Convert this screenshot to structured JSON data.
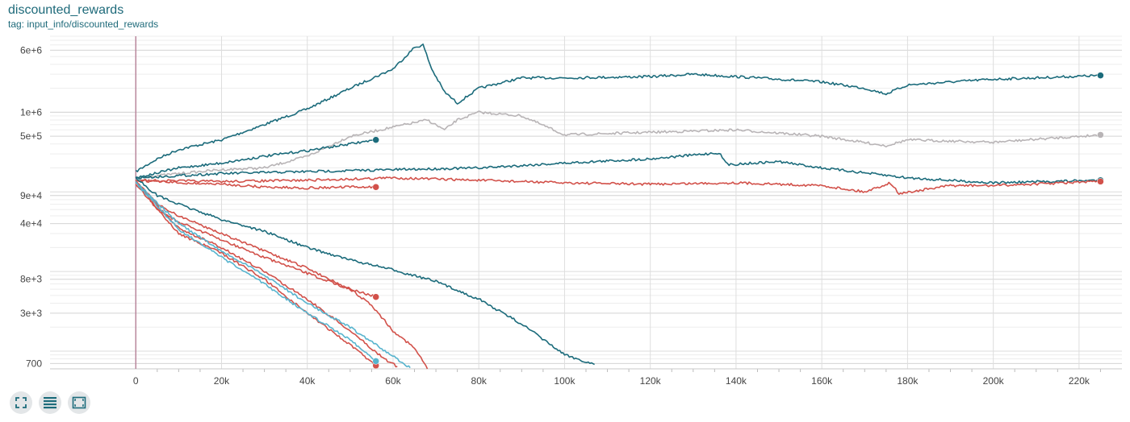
{
  "card": {
    "title": "discounted_rewards",
    "tag": "tag: input_info/discounted_rewards"
  },
  "toolbar": {
    "icons": [
      "fit-domain-icon",
      "toggle-log-scale-icon",
      "expand-chart-icon"
    ]
  },
  "colors": {
    "teal": "#1b6b7b",
    "red": "#d2514a",
    "grey": "#b8b4b6",
    "light_blue": "#57b4ce",
    "zero_line": "#b68097"
  },
  "chart_data": {
    "type": "line",
    "xlabel": "",
    "ylabel": "",
    "yscale": "log",
    "xlim": [
      -20000,
      230000
    ],
    "ylim": [
      600,
      9000000
    ],
    "x_ticks": [
      0,
      20000,
      40000,
      60000,
      80000,
      100000,
      120000,
      140000,
      160000,
      180000,
      200000,
      220000
    ],
    "x_tick_labels": [
      "0",
      "20k",
      "40k",
      "60k",
      "80k",
      "100k",
      "120k",
      "140k",
      "160k",
      "180k",
      "200k",
      "220k"
    ],
    "y_ticks": [
      700,
      3000,
      8000,
      40000,
      90000,
      500000,
      1000000,
      6000000
    ],
    "y_tick_labels": [
      "700",
      "3e+3",
      "8e+3",
      "4e+4",
      "9e+4",
      "5e+5",
      "1e+6",
      "6e+6"
    ],
    "grid": true,
    "series": [
      {
        "color": "#1b6b7b",
        "end_marker": true,
        "points": [
          [
            0,
            180000
          ],
          [
            5000,
            260000
          ],
          [
            10000,
            340000
          ],
          [
            20000,
            450000
          ],
          [
            30000,
            700000
          ],
          [
            40000,
            1100000
          ],
          [
            50000,
            2000000
          ],
          [
            60000,
            3500000
          ],
          [
            65000,
            6500000
          ],
          [
            67000,
            7000000
          ],
          [
            69000,
            3500000
          ],
          [
            72000,
            1800000
          ],
          [
            75000,
            1300000
          ],
          [
            80000,
            2000000
          ],
          [
            90000,
            2700000
          ],
          [
            100000,
            2700000
          ],
          [
            120000,
            2800000
          ],
          [
            130000,
            3000000
          ],
          [
            140000,
            2800000
          ],
          [
            150000,
            2600000
          ],
          [
            160000,
            2400000
          ],
          [
            170000,
            2000000
          ],
          [
            175000,
            1700000
          ],
          [
            180000,
            2200000
          ],
          [
            190000,
            2400000
          ],
          [
            200000,
            2600000
          ],
          [
            210000,
            2700000
          ],
          [
            225000,
            2900000
          ]
        ]
      },
      {
        "color": "#b8b4b6",
        "end_marker": true,
        "points": [
          [
            0,
            150000
          ],
          [
            10000,
            170000
          ],
          [
            20000,
            190000
          ],
          [
            30000,
            200000
          ],
          [
            40000,
            280000
          ],
          [
            50000,
            500000
          ],
          [
            60000,
            650000
          ],
          [
            68000,
            800000
          ],
          [
            72000,
            600000
          ],
          [
            75000,
            800000
          ],
          [
            80000,
            1000000
          ],
          [
            90000,
            900000
          ],
          [
            100000,
            520000
          ],
          [
            120000,
            560000
          ],
          [
            140000,
            600000
          ],
          [
            160000,
            500000
          ],
          [
            175000,
            380000
          ],
          [
            180000,
            450000
          ],
          [
            200000,
            420000
          ],
          [
            225000,
            520000
          ]
        ]
      },
      {
        "color": "#1b6b7b",
        "end_marker": true,
        "points": [
          [
            0,
            150000
          ],
          [
            10000,
            200000
          ],
          [
            20000,
            230000
          ],
          [
            30000,
            280000
          ],
          [
            40000,
            330000
          ],
          [
            50000,
            400000
          ],
          [
            56000,
            450000
          ]
        ]
      },
      {
        "color": "#1b6b7b",
        "end_marker": true,
        "points": [
          [
            0,
            150000
          ],
          [
            20000,
            170000
          ],
          [
            40000,
            180000
          ],
          [
            60000,
            190000
          ],
          [
            80000,
            200000
          ],
          [
            100000,
            230000
          ],
          [
            120000,
            260000
          ],
          [
            136000,
            310000
          ],
          [
            138000,
            220000
          ],
          [
            150000,
            240000
          ],
          [
            160000,
            200000
          ],
          [
            180000,
            150000
          ],
          [
            200000,
            130000
          ],
          [
            225000,
            140000
          ]
        ]
      },
      {
        "color": "#d2514a",
        "end_marker": true,
        "points": [
          [
            0,
            140000
          ],
          [
            20000,
            135000
          ],
          [
            40000,
            140000
          ],
          [
            60000,
            150000
          ],
          [
            80000,
            140000
          ],
          [
            100000,
            130000
          ],
          [
            120000,
            125000
          ],
          [
            140000,
            130000
          ],
          [
            160000,
            120000
          ],
          [
            170000,
            100000
          ],
          [
            176000,
            130000
          ],
          [
            178000,
            95000
          ],
          [
            190000,
            120000
          ],
          [
            200000,
            120000
          ],
          [
            225000,
            135000
          ]
        ]
      },
      {
        "color": "#d2514a",
        "end_marker": true,
        "points": [
          [
            0,
            140000
          ],
          [
            10000,
            130000
          ],
          [
            20000,
            125000
          ],
          [
            30000,
            115000
          ],
          [
            40000,
            112000
          ],
          [
            50000,
            115000
          ],
          [
            56000,
            115000
          ]
        ]
      },
      {
        "color": "#1b6b7b",
        "end_marker": false,
        "points": [
          [
            0,
            150000
          ],
          [
            5000,
            90000
          ],
          [
            10000,
            70000
          ],
          [
            20000,
            45000
          ],
          [
            30000,
            32000
          ],
          [
            40000,
            20000
          ],
          [
            50000,
            14000
          ],
          [
            60000,
            10500
          ],
          [
            70000,
            7500
          ],
          [
            80000,
            4500
          ],
          [
            90000,
            2200
          ],
          [
            100000,
            900
          ],
          [
            107000,
            680
          ]
        ]
      },
      {
        "color": "#d2514a",
        "end_marker": true,
        "points": [
          [
            0,
            140000
          ],
          [
            5000,
            70000
          ],
          [
            10000,
            50000
          ],
          [
            20000,
            30000
          ],
          [
            30000,
            18000
          ],
          [
            40000,
            11000
          ],
          [
            50000,
            6000
          ],
          [
            56000,
            4800
          ]
        ]
      },
      {
        "color": "#d2514a",
        "end_marker": false,
        "points": [
          [
            0,
            140000
          ],
          [
            5000,
            60000
          ],
          [
            10000,
            42000
          ],
          [
            20000,
            25000
          ],
          [
            30000,
            15000
          ],
          [
            40000,
            9500
          ],
          [
            50000,
            6000
          ],
          [
            55000,
            3800
          ],
          [
            60000,
            1800
          ],
          [
            65000,
            1100
          ],
          [
            68000,
            600
          ]
        ]
      },
      {
        "color": "#d2514a",
        "end_marker": false,
        "points": [
          [
            0,
            130000
          ],
          [
            10000,
            35000
          ],
          [
            20000,
            20000
          ],
          [
            30000,
            10000
          ],
          [
            40000,
            4500
          ],
          [
            50000,
            1800
          ],
          [
            58000,
            800
          ],
          [
            61000,
            640
          ]
        ]
      },
      {
        "color": "#d2514a",
        "end_marker": true,
        "points": [
          [
            0,
            125000
          ],
          [
            10000,
            30000
          ],
          [
            20000,
            17000
          ],
          [
            30000,
            8000
          ],
          [
            40000,
            3000
          ],
          [
            50000,
            1200
          ],
          [
            56000,
            660
          ]
        ]
      },
      {
        "color": "#57b4ce",
        "end_marker": false,
        "points": [
          [
            0,
            135000
          ],
          [
            10000,
            40000
          ],
          [
            20000,
            18000
          ],
          [
            30000,
            9000
          ],
          [
            40000,
            4000
          ],
          [
            50000,
            2000
          ],
          [
            57000,
            1100
          ],
          [
            64000,
            620
          ]
        ]
      },
      {
        "color": "#57b4ce",
        "end_marker": true,
        "points": [
          [
            0,
            130000
          ],
          [
            10000,
            34000
          ],
          [
            20000,
            15000
          ],
          [
            30000,
            7000
          ],
          [
            40000,
            3000
          ],
          [
            50000,
            1400
          ],
          [
            56000,
            750
          ]
        ]
      }
    ]
  }
}
